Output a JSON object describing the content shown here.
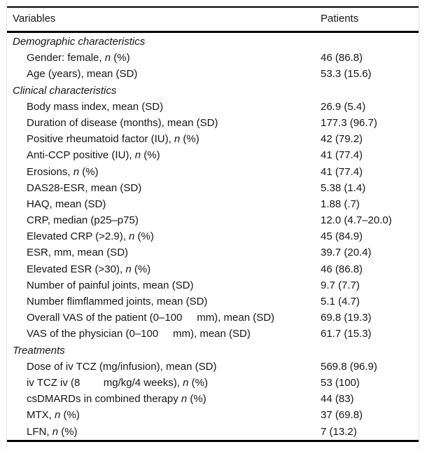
{
  "table": {
    "header": {
      "variables": "Variables",
      "patients": "Patients"
    },
    "styles": {
      "rule_color": "#000000",
      "edge_color": "#e4e4e4",
      "text_color": "#161616"
    },
    "rows": [
      {
        "type": "section",
        "label": "Demographic characteristics"
      },
      {
        "type": "item",
        "parts": [
          {
            "t": "Gender: female, "
          },
          {
            "t": "n",
            "italic": true
          },
          {
            "t": " (%)"
          }
        ],
        "value": "46 (86.8)"
      },
      {
        "type": "item",
        "parts": [
          {
            "t": "Age (years), mean (SD)"
          }
        ],
        "value": "53.3 (15.6)"
      },
      {
        "type": "section",
        "label": "Clinical characteristics"
      },
      {
        "type": "item",
        "parts": [
          {
            "t": "Body mass index, mean (SD)"
          }
        ],
        "value": "26.9 (5.4)"
      },
      {
        "type": "item",
        "parts": [
          {
            "t": "Duration of disease (months), mean (SD)"
          }
        ],
        "value": "177.3 (96.7)"
      },
      {
        "type": "item",
        "parts": [
          {
            "t": "Positive rheumatoid factor (IU), "
          },
          {
            "t": "n",
            "italic": true
          },
          {
            "t": " (%)"
          }
        ],
        "value": "42 (79.2)"
      },
      {
        "type": "item",
        "parts": [
          {
            "t": "Anti-CCP positive (IU), "
          },
          {
            "t": "n",
            "italic": true
          },
          {
            "t": " (%)"
          }
        ],
        "value": "41 (77.4)"
      },
      {
        "type": "item",
        "parts": [
          {
            "t": "Erosions, "
          },
          {
            "t": "n",
            "italic": true
          },
          {
            "t": " (%)"
          }
        ],
        "value": "41 (77.4)"
      },
      {
        "type": "item",
        "parts": [
          {
            "t": "DAS28-ESR, mean (SD)"
          }
        ],
        "value": "5.38 (1.4)"
      },
      {
        "type": "item",
        "parts": [
          {
            "t": "HAQ, mean (SD)"
          }
        ],
        "value": "1.88 (.7)"
      },
      {
        "type": "item",
        "parts": [
          {
            "t": "CRP, median (p25–p75)"
          }
        ],
        "value": "12.0 (4.7–20.0)"
      },
      {
        "type": "item",
        "parts": [
          {
            "t": "Elevated CRP (>2.9), "
          },
          {
            "t": "n",
            "italic": true
          },
          {
            "t": " (%)"
          }
        ],
        "value": "45 (84.9)"
      },
      {
        "type": "item",
        "parts": [
          {
            "t": "ESR, mm, mean (SD)"
          }
        ],
        "value": "39.7 (20.4)"
      },
      {
        "type": "item",
        "parts": [
          {
            "t": "Elevated ESR (>30), "
          },
          {
            "t": "n",
            "italic": true
          },
          {
            "t": " (%)"
          }
        ],
        "value": "46 (86.8)"
      },
      {
        "type": "item",
        "parts": [
          {
            "t": "Number of painful joints, mean (SD)"
          }
        ],
        "value": "9.7 (7.7)"
      },
      {
        "type": "item",
        "parts": [
          {
            "t": "Number flimflammed joints, mean (SD)"
          }
        ],
        "value": "5.1 (4.7)"
      },
      {
        "type": "item",
        "parts": [
          {
            "t": "Overall VAS of the patient (0–100     mm), mean (SD)"
          }
        ],
        "value": "69.8 (19.3)"
      },
      {
        "type": "item",
        "parts": [
          {
            "t": "VAS of the physician (0–100     mm), mean (SD)"
          }
        ],
        "value": "61.7 (15.3)"
      },
      {
        "type": "section",
        "label": "Treatments"
      },
      {
        "type": "item",
        "parts": [
          {
            "t": "Dose of iv TCZ (mg/infusion), mean (SD)"
          }
        ],
        "value": "569.8 (96.9)"
      },
      {
        "type": "item",
        "parts": [
          {
            "t": "iv TCZ iv (8        mg/kg/4 weeks), "
          },
          {
            "t": "n",
            "italic": true
          },
          {
            "t": " (%)"
          }
        ],
        "value": "53 (100)"
      },
      {
        "type": "item",
        "parts": [
          {
            "t": "csDMARDs in combined therapy "
          },
          {
            "t": "n",
            "italic": true
          },
          {
            "t": " (%)"
          }
        ],
        "value": "44 (83)"
      },
      {
        "type": "item",
        "parts": [
          {
            "t": "MTX, "
          },
          {
            "t": "n",
            "italic": true
          },
          {
            "t": " (%)"
          }
        ],
        "value": "37 (69.8)"
      },
      {
        "type": "item",
        "parts": [
          {
            "t": "LFN, "
          },
          {
            "t": "n",
            "italic": true
          },
          {
            "t": " (%)"
          }
        ],
        "value": "7 (13.2)"
      }
    ]
  }
}
